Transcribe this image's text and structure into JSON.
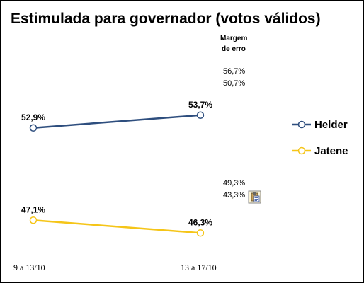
{
  "chart_data": {
    "type": "line",
    "title": "Estimulada para governador (votos válidos)",
    "categories": [
      "9 a 13/10",
      "13 a 17/10"
    ],
    "series": [
      {
        "name": "Helder",
        "values": [
          52.9,
          53.7
        ],
        "labels": [
          "52,9%",
          "53,7%"
        ],
        "color": "#2e4e7e",
        "margin_upper": "56,7%",
        "margin_lower": "50,7%"
      },
      {
        "name": "Jatene",
        "values": [
          47.1,
          46.3
        ],
        "labels": [
          "47,1%",
          "46,3%"
        ],
        "color": "#f5c518",
        "margin_upper": "49,3%",
        "margin_lower": "43,3%"
      }
    ],
    "margin_header": [
      "Margem",
      "de erro"
    ],
    "ylim": [
      40,
      60
    ],
    "legend_position": "right",
    "grid": false
  },
  "icons": {
    "paste_options": "clipboard-icon"
  }
}
